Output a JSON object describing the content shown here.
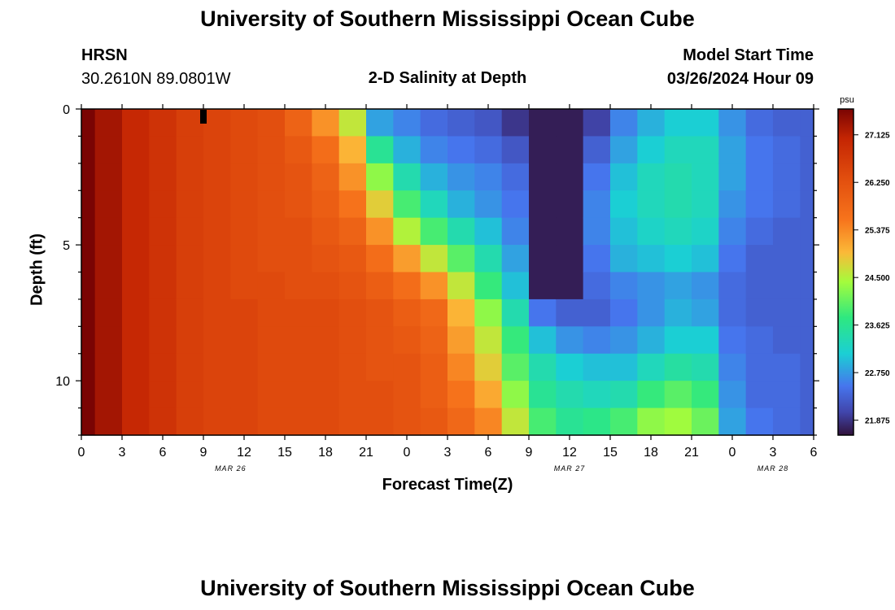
{
  "page": {
    "title": "University of Southern Mississippi Ocean Cube",
    "footer_title": "University of Southern Mississippi Ocean Cube",
    "station_id": "HRSN",
    "coordinates": "30.2610N  89.0801W",
    "plot_title": "2-D Salinity at Depth",
    "model_start_label": "Model Start Time",
    "model_start_value": "03/26/2024 Hour 09"
  },
  "chart_data": {
    "type": "heatmap",
    "title": "2-D Salinity at Depth",
    "xlabel": "Forecast Time(Z)",
    "ylabel": "Depth (ft)",
    "x_tick_labels": [
      "0",
      "3",
      "6",
      "9",
      "12",
      "15",
      "18",
      "21",
      "0",
      "3",
      "6",
      "9",
      "12",
      "15",
      "18",
      "21",
      "0",
      "3",
      "6"
    ],
    "x_range_hours": [
      0,
      54
    ],
    "date_labels": [
      {
        "label": "MAR 26",
        "hour": 11
      },
      {
        "label": "MAR 27",
        "hour": 36
      },
      {
        "label": "MAR 28",
        "hour": 51
      }
    ],
    "y_ticks": [
      0,
      5,
      10
    ],
    "y_range_ft": [
      0,
      12
    ],
    "colorbar": {
      "unit": "psu",
      "min": 21.6,
      "max": 27.6,
      "ticks": [
        "27.125",
        "26.250",
        "25.375",
        "24.500",
        "23.625",
        "22.750",
        "21.875"
      ],
      "tick_values": [
        27.125,
        26.25,
        25.375,
        24.5,
        23.625,
        22.75,
        21.875
      ]
    },
    "depth_levels": 12,
    "columns": [
      {
        "hour": 0,
        "values": [
          27.6,
          27.6,
          27.6,
          27.6,
          27.6,
          27.6,
          27.6,
          27.6,
          27.6,
          27.6,
          27.6,
          27.6
        ]
      },
      {
        "hour": 2,
        "values": [
          27.3,
          27.3,
          27.3,
          27.3,
          27.3,
          27.3,
          27.3,
          27.3,
          27.3,
          27.3,
          27.3,
          27.3
        ]
      },
      {
        "hour": 4,
        "values": [
          27.0,
          27.0,
          27.0,
          27.0,
          27.0,
          27.0,
          27.0,
          27.0,
          27.0,
          27.0,
          27.0,
          27.0
        ]
      },
      {
        "hour": 6,
        "values": [
          26.8,
          26.8,
          26.8,
          26.8,
          26.8,
          26.8,
          26.8,
          26.8,
          26.8,
          26.8,
          26.8,
          26.8
        ]
      },
      {
        "hour": 8,
        "values": [
          26.6,
          26.6,
          26.6,
          26.6,
          26.6,
          26.6,
          26.6,
          26.6,
          26.6,
          26.6,
          26.6,
          26.6
        ]
      },
      {
        "hour": 10,
        "values": [
          26.5,
          26.5,
          26.5,
          26.5,
          26.5,
          26.5,
          26.5,
          26.5,
          26.5,
          26.5,
          26.5,
          26.5
        ]
      },
      {
        "hour": 12,
        "values": [
          26.4,
          26.4,
          26.4,
          26.4,
          26.4,
          26.4,
          26.4,
          26.5,
          26.5,
          26.5,
          26.5,
          26.5
        ]
      },
      {
        "hour": 14,
        "values": [
          26.3,
          26.3,
          26.3,
          26.3,
          26.3,
          26.3,
          26.4,
          26.4,
          26.4,
          26.4,
          26.4,
          26.4
        ]
      },
      {
        "hour": 16,
        "values": [
          25.9,
          26.1,
          26.2,
          26.2,
          26.3,
          26.3,
          26.3,
          26.4,
          26.4,
          26.4,
          26.4,
          26.4
        ]
      },
      {
        "hour": 18,
        "values": [
          25.3,
          25.7,
          25.9,
          26.0,
          26.1,
          26.2,
          26.3,
          26.4,
          26.4,
          26.4,
          26.4,
          26.4
        ]
      },
      {
        "hour": 20,
        "values": [
          24.6,
          25.0,
          25.3,
          25.6,
          25.9,
          26.1,
          26.2,
          26.3,
          26.3,
          26.3,
          26.3,
          26.3
        ]
      },
      {
        "hour": 22,
        "values": [
          22.8,
          23.6,
          24.3,
          24.8,
          25.3,
          25.7,
          26.0,
          26.2,
          26.2,
          26.2,
          26.3,
          26.3
        ]
      },
      {
        "hour": 24,
        "values": [
          22.6,
          22.9,
          23.4,
          23.9,
          24.5,
          25.2,
          25.7,
          26.0,
          26.1,
          26.2,
          26.2,
          26.2
        ]
      },
      {
        "hour": 26,
        "values": [
          22.4,
          22.6,
          22.9,
          23.3,
          23.9,
          24.6,
          25.3,
          25.8,
          25.9,
          26.0,
          26.0,
          26.1
        ]
      },
      {
        "hour": 28,
        "values": [
          22.3,
          22.5,
          22.7,
          22.9,
          23.4,
          24.0,
          24.6,
          25.0,
          25.2,
          25.4,
          25.6,
          25.8
        ]
      },
      {
        "hour": 30,
        "values": [
          22.2,
          22.4,
          22.6,
          22.7,
          23.0,
          23.4,
          23.8,
          24.3,
          24.6,
          24.8,
          25.1,
          25.4
        ]
      },
      {
        "hour": 32,
        "values": [
          21.9,
          22.2,
          22.4,
          22.5,
          22.6,
          22.8,
          23.0,
          23.4,
          23.8,
          24.0,
          24.3,
          24.6
        ]
      },
      {
        "hour": 34,
        "values": [
          21.7,
          21.7,
          21.7,
          21.7,
          21.7,
          21.7,
          21.7,
          22.5,
          23.0,
          23.4,
          23.6,
          23.9
        ]
      },
      {
        "hour": 36,
        "values": [
          21.7,
          21.7,
          21.7,
          21.7,
          21.7,
          21.7,
          21.7,
          22.3,
          22.7,
          23.1,
          23.4,
          23.6
        ]
      },
      {
        "hour": 38,
        "values": [
          22.0,
          22.3,
          22.5,
          22.6,
          22.6,
          22.5,
          22.4,
          22.3,
          22.6,
          23.0,
          23.3,
          23.7
        ]
      },
      {
        "hour": 40,
        "values": [
          22.6,
          22.8,
          23.0,
          23.1,
          23.0,
          22.9,
          22.6,
          22.5,
          22.7,
          23.0,
          23.4,
          23.9
        ]
      },
      {
        "hour": 42,
        "values": [
          22.9,
          23.1,
          23.3,
          23.3,
          23.2,
          23.0,
          22.7,
          22.7,
          22.9,
          23.3,
          23.8,
          24.3
        ]
      },
      {
        "hour": 44,
        "values": [
          23.1,
          23.3,
          23.4,
          23.4,
          23.3,
          23.1,
          22.8,
          22.9,
          23.1,
          23.5,
          24.0,
          24.4
        ]
      },
      {
        "hour": 46,
        "values": [
          23.1,
          23.3,
          23.3,
          23.3,
          23.2,
          23.0,
          22.7,
          22.8,
          23.1,
          23.4,
          23.8,
          24.1
        ]
      },
      {
        "hour": 48,
        "values": [
          22.7,
          22.8,
          22.8,
          22.7,
          22.6,
          22.5,
          22.4,
          22.4,
          22.5,
          22.6,
          22.7,
          22.8
        ]
      },
      {
        "hour": 50,
        "values": [
          22.4,
          22.5,
          22.5,
          22.5,
          22.4,
          22.3,
          22.3,
          22.3,
          22.4,
          22.4,
          22.4,
          22.5
        ]
      },
      {
        "hour": 52,
        "values": [
          22.3,
          22.4,
          22.4,
          22.4,
          22.3,
          22.3,
          22.3,
          22.3,
          22.3,
          22.4,
          22.4,
          22.4
        ]
      },
      {
        "hour": 54,
        "values": [
          22.3,
          22.3,
          22.3,
          22.3,
          22.3,
          22.3,
          22.3,
          22.3,
          22.3,
          22.3,
          22.3,
          22.3
        ]
      }
    ],
    "marker": {
      "hour": 9,
      "depth_ft": 0.5,
      "label": "model start marker"
    }
  }
}
